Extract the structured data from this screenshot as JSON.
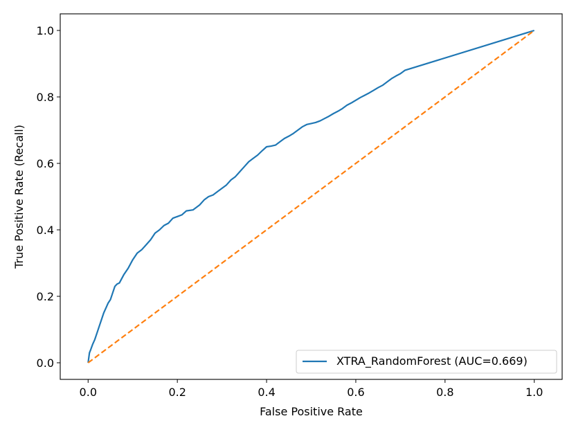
{
  "chart_data": {
    "type": "line",
    "title": "",
    "xlabel": "False Positive Rate",
    "ylabel": "True Positive Rate (Recall)",
    "xlim": [
      -0.0625,
      1.0625
    ],
    "ylim": [
      -0.05,
      1.05
    ],
    "xticks": [
      "0.0",
      "0.2",
      "0.4",
      "0.6",
      "0.8",
      "1.0"
    ],
    "yticks": [
      "0.0",
      "0.2",
      "0.4",
      "0.6",
      "0.8",
      "1.0"
    ],
    "grid": false,
    "legend_position": "lower-right",
    "series": [
      {
        "name": "XTRA_RandomForest (AUC=0.669)",
        "color": "#1f77b4",
        "style": "solid",
        "x": [
          0.0,
          0.003,
          0.006,
          0.01,
          0.015,
          0.02,
          0.025,
          0.03,
          0.035,
          0.04,
          0.045,
          0.05,
          0.055,
          0.06,
          0.065,
          0.07,
          0.08,
          0.09,
          0.1,
          0.11,
          0.12,
          0.13,
          0.14,
          0.15,
          0.16,
          0.17,
          0.18,
          0.19,
          0.2,
          0.21,
          0.22,
          0.235,
          0.25,
          0.26,
          0.27,
          0.28,
          0.29,
          0.3,
          0.31,
          0.32,
          0.33,
          0.34,
          0.35,
          0.36,
          0.37,
          0.38,
          0.39,
          0.4,
          0.41,
          0.42,
          0.43,
          0.44,
          0.45,
          0.46,
          0.47,
          0.48,
          0.49,
          0.5,
          0.51,
          0.52,
          0.53,
          0.54,
          0.55,
          0.56,
          0.57,
          0.58,
          0.59,
          0.6,
          0.61,
          0.62,
          0.63,
          0.64,
          0.65,
          0.66,
          0.67,
          0.68,
          0.69,
          0.7,
          0.71,
          1.0
        ],
        "y": [
          0.0,
          0.03,
          0.04,
          0.055,
          0.07,
          0.09,
          0.11,
          0.13,
          0.15,
          0.165,
          0.18,
          0.19,
          0.21,
          0.23,
          0.237,
          0.24,
          0.265,
          0.285,
          0.31,
          0.33,
          0.34,
          0.355,
          0.37,
          0.39,
          0.4,
          0.413,
          0.42,
          0.435,
          0.44,
          0.445,
          0.457,
          0.46,
          0.475,
          0.49,
          0.5,
          0.505,
          0.515,
          0.525,
          0.535,
          0.55,
          0.56,
          0.575,
          0.59,
          0.605,
          0.615,
          0.625,
          0.638,
          0.65,
          0.652,
          0.655,
          0.665,
          0.675,
          0.682,
          0.69,
          0.7,
          0.71,
          0.717,
          0.72,
          0.723,
          0.728,
          0.735,
          0.742,
          0.75,
          0.757,
          0.765,
          0.775,
          0.782,
          0.79,
          0.798,
          0.805,
          0.812,
          0.82,
          0.828,
          0.835,
          0.845,
          0.855,
          0.863,
          0.87,
          0.88,
          1.0
        ]
      },
      {
        "name": "",
        "color": "#ff7f0e",
        "style": "dashed",
        "x": [
          0.0,
          1.0
        ],
        "y": [
          0.0,
          1.0
        ]
      }
    ]
  }
}
